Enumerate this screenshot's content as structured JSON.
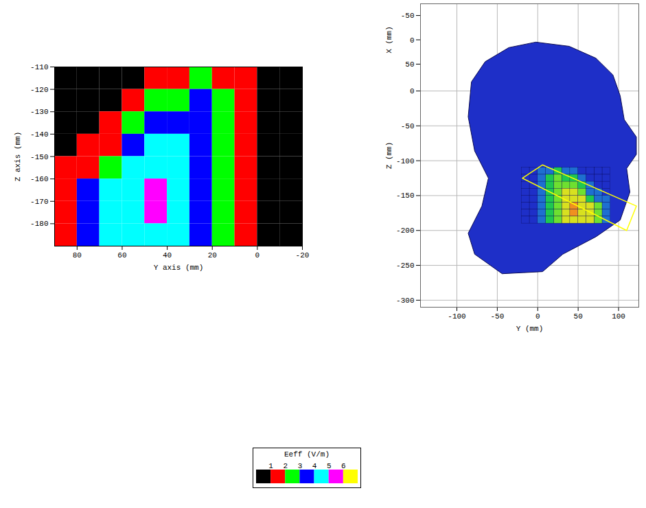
{
  "chart_data": [
    {
      "type": "contour",
      "xlabel": "Y axis (mm)",
      "ylabel": "Z axis (mm)",
      "xlim": [
        90,
        -20
      ],
      "xticks": [
        80,
        60,
        40,
        20,
        0,
        -20
      ],
      "ylim": [
        -190,
        -110
      ],
      "yticks": [
        -110,
        -120,
        -130,
        -140,
        -150,
        -160,
        -170,
        -180
      ],
      "grid": false,
      "y_edges": [
        90,
        80,
        70,
        60,
        50,
        40,
        30,
        20,
        10,
        0,
        -10,
        -20
      ],
      "z_edges": [
        -110,
        -120,
        -130,
        -140,
        -150,
        -160,
        -170,
        -180,
        -190
      ],
      "levels": [
        [
          0,
          0,
          0,
          0,
          1,
          1,
          2,
          1,
          1,
          0,
          0
        ],
        [
          0,
          0,
          0,
          1,
          2,
          2,
          3,
          2,
          1,
          0,
          0
        ],
        [
          0,
          0,
          1,
          2,
          3,
          3,
          3,
          2,
          1,
          0,
          0
        ],
        [
          0,
          1,
          1,
          3,
          4,
          4,
          3,
          2,
          1,
          0,
          0
        ],
        [
          1,
          1,
          2,
          4,
          4,
          4,
          3,
          2,
          1,
          0,
          0
        ],
        [
          1,
          3,
          4,
          4,
          5,
          4,
          3,
          2,
          1,
          0,
          0
        ],
        [
          1,
          3,
          4,
          4,
          5,
          4,
          3,
          2,
          1,
          0,
          0
        ],
        [
          1,
          3,
          4,
          4,
          4,
          4,
          3,
          2,
          1,
          0,
          0
        ]
      ],
      "colorbar": {
        "title": "Eeff (V/m)",
        "ticks": [
          1,
          2,
          3,
          4,
          5,
          6
        ],
        "colors": [
          "#000000",
          "#ff0000",
          "#00ff00",
          "#0000ff",
          "#00ffff",
          "#ff00ff",
          "#ffff00"
        ]
      }
    },
    {
      "type": "surface",
      "xlabel": "Y (mm)",
      "ylabel": "Z (mm)",
      "xlim": [
        -145,
        125
      ],
      "xticks": [
        -100,
        -50,
        0,
        50,
        100
      ],
      "ylim": [
        -310,
        125
      ],
      "yticks": [
        0,
        -50,
        -100,
        -150,
        -200,
        -250,
        -300
      ],
      "depth_label": "X (mm)",
      "depth_lim": [
        -60,
        60
      ],
      "depth_ticks": [
        -50,
        0,
        50
      ],
      "grid": true,
      "color": "#1e2fc8",
      "colors": [
        "#1e2fc8",
        "#1e6fd0",
        "#1ec850",
        "#6ee030",
        "#d8e020",
        "#f09020",
        "#e02a10"
      ],
      "outline": [
        [
          -2,
          70
        ],
        [
          39,
          64
        ],
        [
          72,
          47
        ],
        [
          93,
          23
        ],
        [
          102,
          -7
        ],
        [
          107,
          -41
        ],
        [
          122,
          -66
        ],
        [
          122,
          -91
        ],
        [
          110,
          -111
        ],
        [
          114,
          -145
        ],
        [
          102,
          -185
        ],
        [
          72,
          -209
        ],
        [
          31,
          -234
        ],
        [
          6,
          -259
        ],
        [
          -44,
          -262
        ],
        [
          -78,
          -234
        ],
        [
          -86,
          -204
        ],
        [
          -69,
          -165
        ],
        [
          -61,
          -125
        ],
        [
          -78,
          -86
        ],
        [
          -86,
          -37
        ],
        [
          -82,
          13
        ],
        [
          -65,
          42
        ],
        [
          -36,
          62
        ]
      ],
      "phone": [
        [
          -19,
          -125
        ],
        [
          6,
          -106
        ],
        [
          122,
          -165
        ],
        [
          110,
          -200
        ]
      ]
    }
  ]
}
